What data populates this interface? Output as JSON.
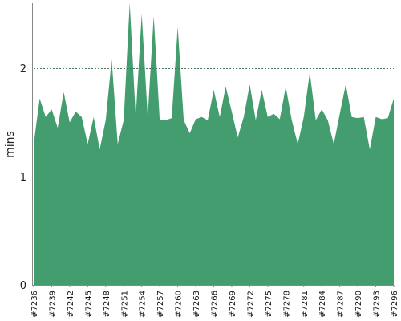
{
  "chart_data": {
    "type": "area",
    "ylabel": "mins",
    "xlabel": "",
    "ylim": [
      0,
      2.6
    ],
    "yticks": [
      "0",
      "1",
      "2"
    ],
    "gridlines": [
      1,
      2
    ],
    "color": "#449d6e",
    "x": [
      "#7236",
      "#7237",
      "#7238",
      "#7239",
      "#7240",
      "#7241",
      "#7242",
      "#7243",
      "#7244",
      "#7245",
      "#7246",
      "#7247",
      "#7248",
      "#7249",
      "#7250",
      "#7251",
      "#7252",
      "#7253",
      "#7254",
      "#7255",
      "#7256",
      "#7257",
      "#7258",
      "#7259",
      "#7260",
      "#7261",
      "#7262",
      "#7263",
      "#7264",
      "#7265",
      "#7266",
      "#7267",
      "#7268",
      "#7269",
      "#7270",
      "#7271",
      "#7272",
      "#7273",
      "#7274",
      "#7275",
      "#7276",
      "#7277",
      "#7278",
      "#7279",
      "#7280",
      "#7281",
      "#7282",
      "#7283",
      "#7284",
      "#7285",
      "#7286",
      "#7287",
      "#7288",
      "#7289",
      "#7290",
      "#7291",
      "#7292",
      "#7293",
      "#7294",
      "#7295",
      "#7296"
    ],
    "x_tick_labels": [
      "#7236",
      "#7239",
      "#7242",
      "#7245",
      "#7248",
      "#7251",
      "#7254",
      "#7257",
      "#7260",
      "#7263",
      "#7266",
      "#7269",
      "#7272",
      "#7275",
      "#7278",
      "#7281",
      "#7284",
      "#7287",
      "#7290",
      "#7293",
      "#7296"
    ],
    "values": [
      1.3,
      1.72,
      1.55,
      1.62,
      1.45,
      1.78,
      1.5,
      1.6,
      1.55,
      1.3,
      1.55,
      1.25,
      1.52,
      2.08,
      1.3,
      1.52,
      2.7,
      1.55,
      2.5,
      1.55,
      2.48,
      1.52,
      1.52,
      1.54,
      2.38,
      1.52,
      1.4,
      1.53,
      1.55,
      1.52,
      1.8,
      1.55,
      1.83,
      1.6,
      1.36,
      1.55,
      1.85,
      1.52,
      1.8,
      1.55,
      1.58,
      1.53,
      1.83,
      1.52,
      1.3,
      1.55,
      1.96,
      1.52,
      1.62,
      1.52,
      1.3,
      1.58,
      1.85,
      1.55,
      1.54,
      1.55,
      1.25,
      1.55,
      1.53,
      1.54,
      1.72
    ]
  }
}
